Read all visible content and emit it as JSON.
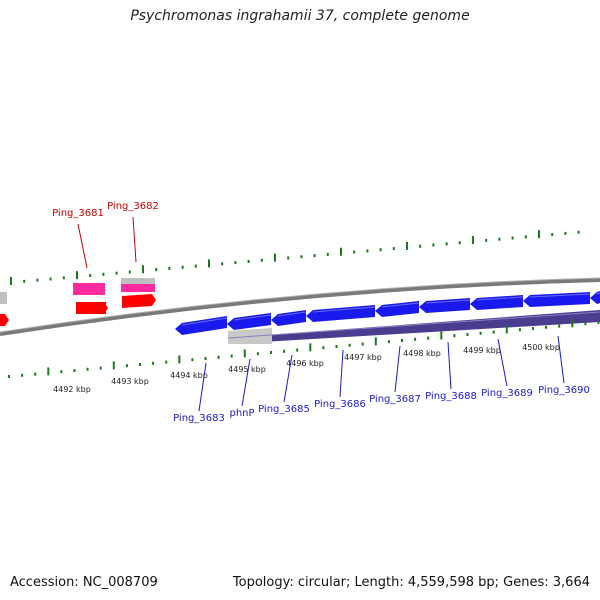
{
  "title": "Psychromonas ingrahamii 37, complete genome",
  "footer": {
    "accession": "Accession: NC_008709",
    "stats": "Topology: circular; Length: 4,559,598 bp; Genes: 3,664"
  },
  "scale_labels": [
    "4492 kbp",
    "4493 kbp",
    "4494 kbp",
    "4495 kbp",
    "4496 kbp",
    "4497 kbp",
    "4498 kbp",
    "4499 kbp",
    "4500 kbp"
  ],
  "top_gene_labels": [
    "Ping_3681",
    "Ping_3682"
  ],
  "bottom_gene_labels": [
    "Ping_3683",
    "phnP",
    "Ping_3685",
    "Ping_3686",
    "Ping_3687",
    "Ping_3688",
    "Ping_3689",
    "Ping_3690"
  ],
  "colors": {
    "forward_cds": "#ff0000",
    "forward_rna": "#ff2aa0",
    "reverse_cds": "#1a1aee",
    "backbone": "#7a7a7a",
    "gc_track": "#4a3d8f",
    "tick": "#1a7a1a",
    "red_label": "#cc0000",
    "blue_label": "#1a1acc"
  }
}
